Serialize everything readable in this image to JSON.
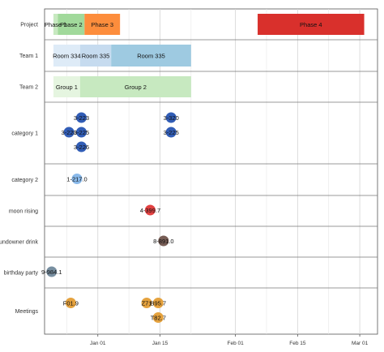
{
  "chart_data": {
    "type": "timeline",
    "x_axis": {
      "type": "date",
      "range": [
        "2018-12-20",
        "2019-03-05"
      ],
      "ticks": [
        {
          "date": "2019-01-01",
          "label": "Jan 01"
        },
        {
          "date": "2019-01-15",
          "label": "Jan 15"
        },
        {
          "date": "2019-02-01",
          "label": "Feb 01"
        },
        {
          "date": "2019-02-15",
          "label": "Feb 15"
        },
        {
          "date": "2019-03-01",
          "label": "Mar 01"
        }
      ],
      "minor_ticks": [
        "2018-12-25",
        "2019-01-08",
        "2019-01-22",
        "2019-02-08",
        "2019-02-22"
      ]
    },
    "grid": true,
    "lanes": [
      {
        "label": "Project",
        "type": "range",
        "items": [
          {
            "label": "Phase 1",
            "start": "2018-12-22",
            "end": "2018-12-23",
            "color": "#c7e9c0"
          },
          {
            "label": "Phase 2",
            "start": "2018-12-23",
            "end": "2018-12-29",
            "color": "#a1d99b"
          },
          {
            "label": "Phase 3",
            "start": "2018-12-29",
            "end": "2019-01-06",
            "color": "#fd8d3c"
          },
          {
            "label": "Phase 4",
            "start": "2019-02-06",
            "end": "2019-03-02",
            "color": "#d9302c"
          }
        ]
      },
      {
        "label": "Team 1",
        "type": "range",
        "items": [
          {
            "label": "Room 334",
            "start": "2018-12-22",
            "end": "2018-12-28",
            "color": "#deebf7"
          },
          {
            "label": "Room 335",
            "start": "2018-12-28",
            "end": "2019-01-04",
            "color": "#c6dbef"
          },
          {
            "label": "Room 335",
            "start": "2019-01-04",
            "end": "2019-01-22",
            "color": "#9ecae1"
          }
        ]
      },
      {
        "label": "Team 2",
        "type": "range",
        "items": [
          {
            "label": "Group 1",
            "start": "2018-12-22",
            "end": "2018-12-28",
            "color": "#e5f5e0"
          },
          {
            "label": "Group 2",
            "start": "2018-12-28",
            "end": "2019-01-22",
            "color": "#c7e9c0"
          }
        ]
      },
      {
        "label": "category 1",
        "type": "point",
        "color": "#1f4fb0",
        "items": [
          {
            "label": "3-223",
            "date": "2018-12-28.3",
            "row": 0
          },
          {
            "label": "3-320",
            "date": "2019-01-17.5",
            "row": 0
          },
          {
            "label": "3-220",
            "date": "2018-12-25.5",
            "row": 1
          },
          {
            "label": "3-225",
            "date": "2018-12-28.3",
            "row": 1
          },
          {
            "label": "3-225",
            "date": "2019-01-17.5",
            "row": 1
          },
          {
            "label": "3-226",
            "date": "2018-12-28.3",
            "row": 2
          }
        ]
      },
      {
        "label": "category 2",
        "type": "point",
        "color": "#7fb3e8",
        "items": [
          {
            "label": "1-217.0",
            "date": "2018-12-27.3",
            "row": 0
          }
        ]
      },
      {
        "label": "moon rising",
        "type": "point",
        "color": "#e03131",
        "items": [
          {
            "label": "4-399.7",
            "date": "2019-01-12.8",
            "row": 0
          }
        ]
      },
      {
        "label": "sundowner drink",
        "type": "point",
        "color": "#6b4f47",
        "items": [
          {
            "label": "8-891.0",
            "date": "2019-01-15.8",
            "row": 0
          }
        ]
      },
      {
        "label": "birthday party",
        "type": "point",
        "color": "#6d8599",
        "items": [
          {
            "label": "9-984.1",
            "date": "2018-12-21.6",
            "row": 0
          }
        ]
      },
      {
        "label": "Meetings",
        "type": "point",
        "color": "#e39a2e",
        "items": [
          {
            "label": "F01.9",
            "date": "2018-12-25.9",
            "row": 0
          },
          {
            "label": "Z71",
            "date": "2019-01-12",
            "row": 0
          },
          {
            "label": "B95.7",
            "date": "2019-01-14.6",
            "row": 0
          },
          {
            "label": "T82.7",
            "date": "2019-01-14.6",
            "row": 1
          }
        ]
      }
    ]
  }
}
